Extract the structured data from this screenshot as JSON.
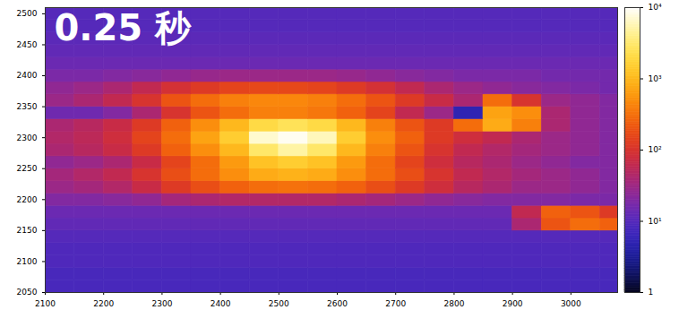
{
  "chart_data": {
    "type": "heatmap",
    "title": "0.25 秒",
    "xlim": [
      2100,
      3080
    ],
    "ylim": [
      2050,
      2510
    ],
    "xticks": [
      2100,
      2200,
      2300,
      2400,
      2500,
      2600,
      2700,
      2800,
      2900,
      3000
    ],
    "yticks": [
      2050,
      2100,
      2150,
      2200,
      2250,
      2300,
      2350,
      2400,
      2450,
      2500
    ],
    "x_edges": [
      2100,
      2150,
      2200,
      2250,
      2300,
      2350,
      2400,
      2450,
      2500,
      2550,
      2600,
      2650,
      2700,
      2750,
      2800,
      2850,
      2900,
      2950,
      3000,
      3050,
      3080
    ],
    "y_edges": [
      2050,
      2070,
      2090,
      2110,
      2130,
      2150,
      2170,
      2190,
      2210,
      2230,
      2250,
      2270,
      2290,
      2310,
      2330,
      2350,
      2370,
      2390,
      2410,
      2430,
      2450,
      2470,
      2490,
      2510
    ],
    "cells": [
      [
        8,
        8,
        8,
        8,
        8,
        8,
        8,
        8,
        8,
        8,
        8,
        8,
        8,
        8,
        8,
        8,
        8,
        8,
        8,
        8
      ],
      [
        8,
        8,
        8,
        8,
        8,
        8,
        8,
        8,
        8,
        8,
        8,
        8,
        8,
        8,
        8,
        8,
        8,
        8,
        8,
        8
      ],
      [
        9,
        9,
        9,
        9,
        9,
        9,
        9,
        9,
        9,
        9,
        9,
        9,
        9,
        9,
        9,
        9,
        9,
        9,
        9,
        9
      ],
      [
        9,
        9,
        9,
        9,
        9,
        9,
        9,
        9,
        9,
        9,
        9,
        9,
        9,
        9,
        9,
        9,
        9,
        9,
        9,
        9
      ],
      [
        10,
        10,
        10,
        10,
        10,
        10,
        10,
        10,
        10,
        10,
        10,
        10,
        10,
        10,
        10,
        10,
        10,
        10,
        10,
        10
      ],
      [
        12,
        12,
        12,
        12,
        12,
        12,
        12,
        12,
        12,
        12,
        12,
        12,
        12,
        12,
        12,
        12,
        40,
        200,
        300,
        250
      ],
      [
        14,
        14,
        14,
        14,
        14,
        14,
        14,
        14,
        14,
        14,
        14,
        14,
        14,
        14,
        14,
        14,
        60,
        250,
        200,
        120
      ],
      [
        20,
        20,
        22,
        25,
        35,
        40,
        45,
        45,
        45,
        45,
        40,
        35,
        30,
        25,
        22,
        20,
        20,
        20,
        18,
        18
      ],
      [
        30,
        35,
        45,
        70,
        120,
        180,
        250,
        300,
        320,
        300,
        250,
        180,
        120,
        80,
        50,
        40,
        30,
        30,
        25,
        20
      ],
      [
        35,
        45,
        60,
        100,
        180,
        300,
        500,
        800,
        900,
        800,
        500,
        300,
        180,
        100,
        60,
        45,
        35,
        30,
        25,
        20
      ],
      [
        25,
        30,
        40,
        70,
        150,
        300,
        600,
        1200,
        1500,
        1200,
        600,
        300,
        150,
        80,
        50,
        40,
        30,
        25,
        20,
        20
      ],
      [
        40,
        50,
        70,
        120,
        250,
        500,
        1000,
        3000,
        5000,
        3000,
        1000,
        400,
        200,
        100,
        60,
        45,
        35,
        30,
        25,
        20
      ],
      [
        45,
        55,
        80,
        150,
        300,
        700,
        1500,
        7000,
        9000,
        6000,
        1500,
        500,
        250,
        120,
        80,
        60,
        40,
        30,
        25,
        20
      ],
      [
        40,
        50,
        70,
        120,
        250,
        500,
        1000,
        2000,
        2500,
        2000,
        1000,
        400,
        200,
        120,
        300,
        800,
        400,
        40,
        25,
        20
      ],
      [
        15,
        15,
        20,
        40,
        100,
        200,
        300,
        400,
        400,
        350,
        250,
        150,
        60,
        30,
        5,
        700,
        500,
        40,
        25,
        20
      ],
      [
        30,
        40,
        60,
        100,
        200,
        300,
        400,
        450,
        450,
        400,
        300,
        200,
        120,
        70,
        40,
        300,
        100,
        30,
        25,
        20
      ],
      [
        25,
        30,
        40,
        60,
        90,
        120,
        150,
        160,
        160,
        150,
        120,
        90,
        60,
        40,
        30,
        25,
        22,
        20,
        18,
        16
      ],
      [
        18,
        18,
        20,
        22,
        25,
        28,
        30,
        30,
        30,
        30,
        28,
        25,
        22,
        20,
        18,
        18,
        18,
        16,
        16,
        16
      ],
      [
        14,
        14,
        14,
        14,
        14,
        14,
        14,
        14,
        14,
        14,
        14,
        14,
        14,
        14,
        14,
        14,
        14,
        14,
        14,
        14
      ],
      [
        12,
        12,
        12,
        12,
        12,
        12,
        12,
        12,
        12,
        12,
        12,
        12,
        12,
        12,
        12,
        12,
        12,
        12,
        12,
        12
      ],
      [
        11,
        11,
        11,
        11,
        11,
        11,
        11,
        11,
        11,
        11,
        11,
        11,
        11,
        11,
        11,
        11,
        11,
        11,
        11,
        11
      ],
      [
        10,
        10,
        10,
        10,
        10,
        10,
        10,
        10,
        10,
        10,
        10,
        10,
        10,
        10,
        10,
        10,
        10,
        10,
        10,
        10
      ],
      [
        10,
        10,
        10,
        10,
        10,
        10,
        10,
        10,
        10,
        10,
        10,
        10,
        10,
        10,
        10,
        10,
        10,
        10,
        10,
        10
      ]
    ],
    "color_range": [
      1,
      10000
    ],
    "color_ticks": [
      1,
      {
        "value": 10,
        "label": "10¹"
      },
      {
        "value": 100,
        "label": "10²"
      },
      {
        "value": 1000,
        "label": "10³"
      },
      {
        "value": 10000,
        "label": "10⁴"
      }
    ]
  }
}
